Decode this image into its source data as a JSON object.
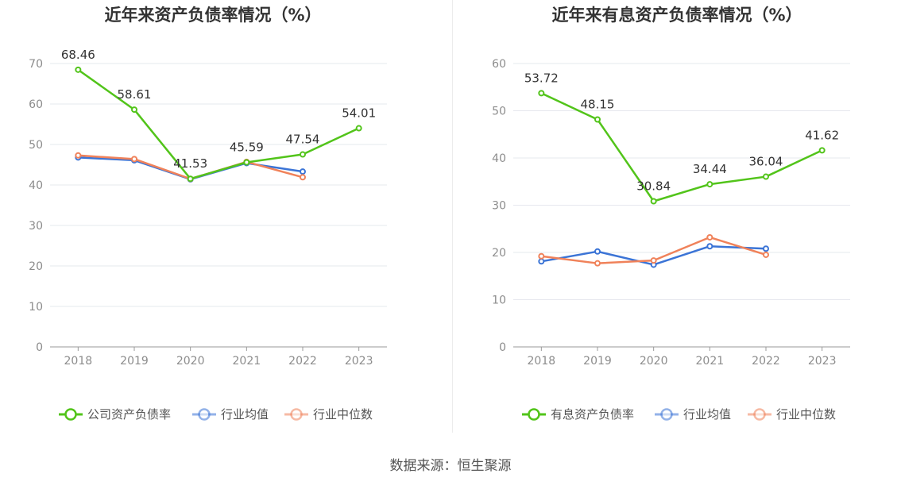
{
  "colors": {
    "main_series": "#52c41a",
    "industry_avg": "#3b74d6",
    "industry_median": "#f0825a",
    "grid": "#e6e8ee",
    "axis": "#9a9a9a",
    "tick_text": "#8c8c8c",
    "title": "#333333",
    "label": "#333333",
    "legend_text": "#555555"
  },
  "source_text": "数据来源：恒生聚源",
  "chart_data": [
    {
      "type": "line",
      "title": "近年来资产负债率情况（%）",
      "xlabel": "",
      "ylabel": "",
      "ylim": [
        0,
        70
      ],
      "y_ticks": [
        0,
        10,
        20,
        30,
        40,
        50,
        60,
        70
      ],
      "grid": true,
      "legend_position": "bottom",
      "categories": [
        "2018",
        "2019",
        "2020",
        "2021",
        "2022",
        "2023"
      ],
      "series": [
        {
          "name": "公司资产负债率",
          "color_key": "main_series",
          "values": [
            68.46,
            58.61,
            41.53,
            45.59,
            47.54,
            54.01
          ],
          "labels": [
            "68.46",
            "58.61",
            "41.53",
            "45.59",
            "47.54",
            "54.01"
          ]
        },
        {
          "name": "行业均值",
          "color_key": "industry_avg",
          "values": [
            46.8,
            46.1,
            41.4,
            45.4,
            43.3,
            null
          ]
        },
        {
          "name": "行业中位数",
          "color_key": "industry_median",
          "values": [
            47.3,
            46.4,
            41.5,
            45.7,
            41.9,
            null
          ]
        }
      ]
    },
    {
      "type": "line",
      "title": "近年来有息资产负债率情况（%）",
      "xlabel": "",
      "ylabel": "",
      "ylim": [
        0,
        60
      ],
      "y_ticks": [
        0,
        10,
        20,
        30,
        40,
        50,
        60
      ],
      "grid": true,
      "legend_position": "bottom",
      "categories": [
        "2018",
        "2019",
        "2020",
        "2021",
        "2022",
        "2023"
      ],
      "series": [
        {
          "name": "有息资产负债率",
          "color_key": "main_series",
          "values": [
            53.72,
            48.15,
            30.84,
            34.44,
            36.04,
            41.62
          ],
          "labels": [
            "53.72",
            "48.15",
            "30.84",
            "34.44",
            "36.04",
            "41.62"
          ]
        },
        {
          "name": "行业均值",
          "color_key": "industry_avg",
          "values": [
            18.1,
            20.2,
            17.4,
            21.3,
            20.8,
            null
          ]
        },
        {
          "name": "行业中位数",
          "color_key": "industry_median",
          "values": [
            19.2,
            17.7,
            18.3,
            23.2,
            19.5,
            null
          ]
        }
      ]
    }
  ]
}
